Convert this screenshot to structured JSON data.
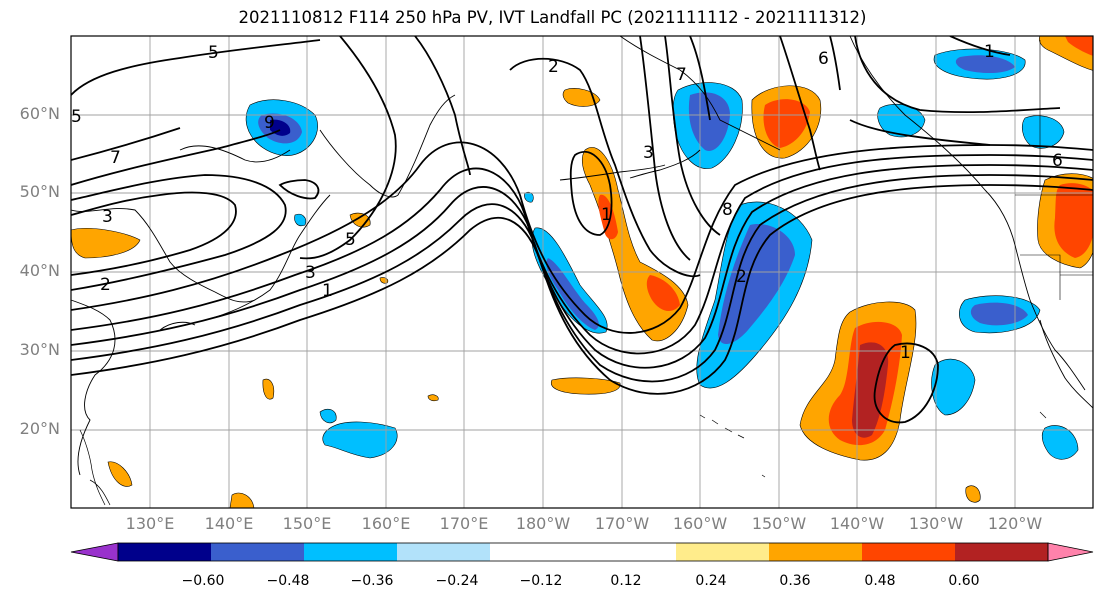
{
  "title": "2021110812 F114 250 hPa PV, IVT Landfall PC (2021111112 - 2021111312)",
  "lat_labels": [
    "60°N",
    "50°N",
    "40°N",
    "30°N",
    "20°N"
  ],
  "lon_labels": [
    "130°E",
    "140°E",
    "150°E",
    "160°E",
    "170°E",
    "180°W",
    "170°W",
    "160°W",
    "150°W",
    "140°W",
    "130°W",
    "120°W"
  ],
  "contour_labels": [
    "5",
    "7",
    "3",
    "2",
    "1",
    "9",
    "5",
    "3",
    "1",
    "2",
    "3",
    "6",
    "7",
    "1",
    "8",
    "2",
    "6",
    "1",
    "5"
  ],
  "colorbar": {
    "colors": [
      "#9932cc",
      "#00008b",
      "#3a5fcd",
      "#00bfff",
      "#b2e2fa",
      "#ffffff",
      "#ffffff",
      "#ffec8b",
      "#ffa500",
      "#ff4500",
      "#b22222",
      "#ff82ab"
    ],
    "extend_min_color": "#9932cc",
    "extend_max_color": "#ff82ab",
    "tick_labels": [
      "−0.60",
      "−0.48",
      "−0.36",
      "−0.24",
      "−0.12",
      "0.12",
      "0.24",
      "0.36",
      "0.48",
      "0.60"
    ]
  }
}
